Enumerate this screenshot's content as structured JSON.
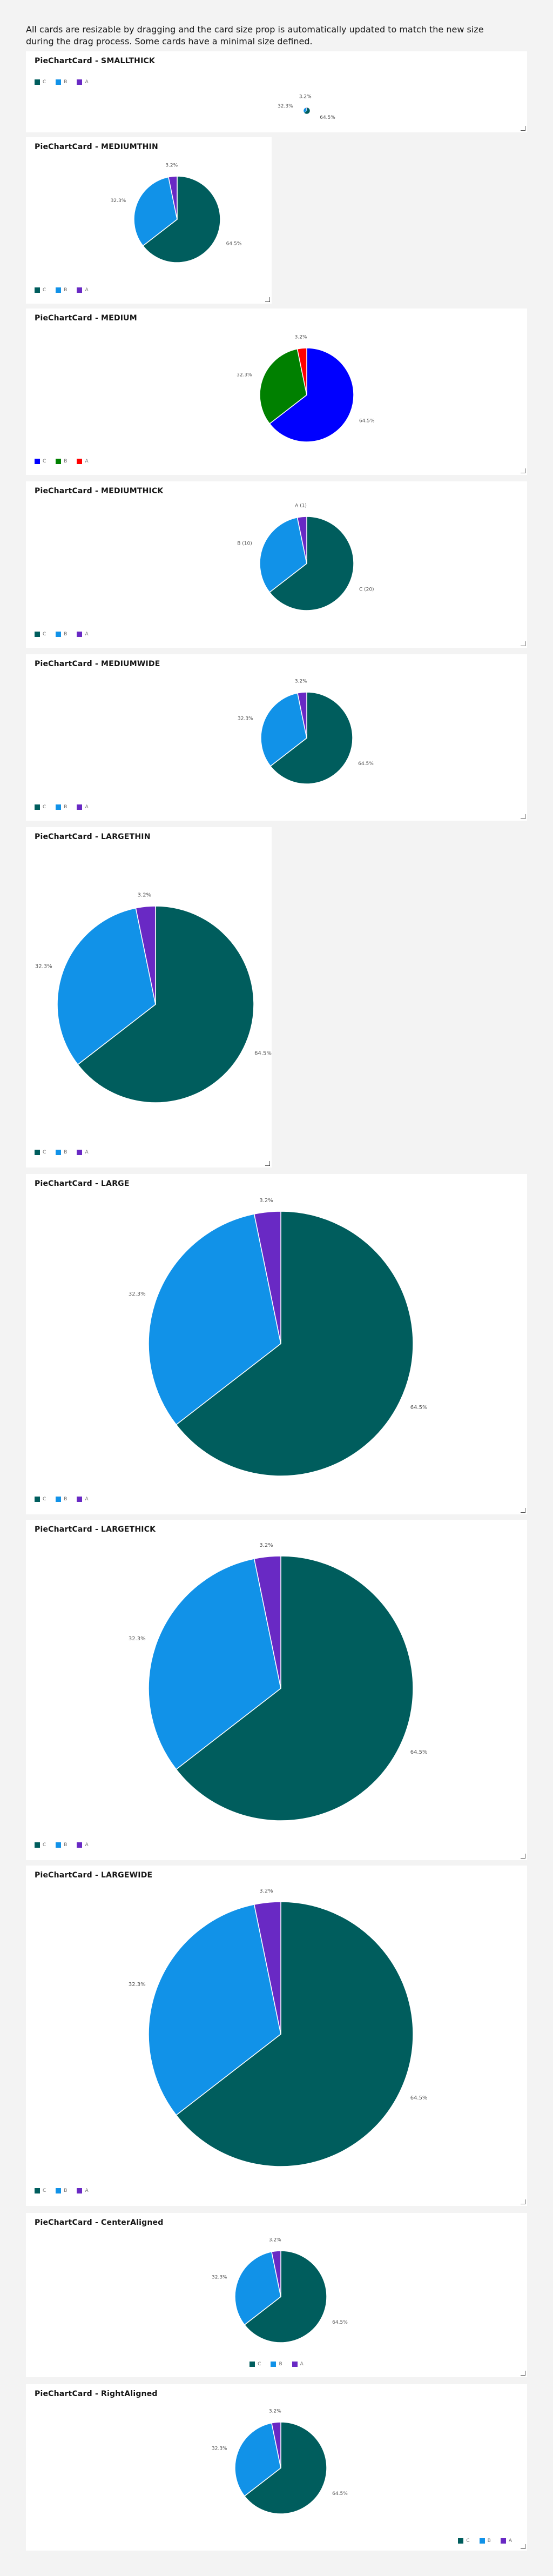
{
  "intro": {
    "text": "All cards are resizable by dragging and the card size prop is automatically updated to match the new size during the drag process. Some cards have a minimal size defined."
  },
  "icons": {
    "resize_handle": "resize-handle-icon"
  },
  "cards": [
    {
      "id": "smallthick",
      "title": "PieChartCard - SMALLTHICK",
      "labels": [
        "64.5%",
        "32.3%",
        "3.2%"
      ],
      "colors": [
        "#005d5d",
        "#1192e8",
        "#6929c4"
      ],
      "legend": [
        "C",
        "B",
        "A"
      ]
    },
    {
      "id": "mediumthin",
      "title": "PieChartCard - MEDIUMTHIN",
      "labels": [
        "64.5%",
        "32.3%",
        "3.2%"
      ],
      "colors": [
        "#005d5d",
        "#1192e8",
        "#6929c4"
      ],
      "legend": [
        "C",
        "B",
        "A"
      ]
    },
    {
      "id": "medium",
      "title": "PieChartCard - MEDIUM",
      "labels": [
        "64.5%",
        "32.3%",
        "3.2%"
      ],
      "colors": [
        "#0000ff",
        "#008000",
        "#ff0000"
      ],
      "legend": [
        "C",
        "B",
        "A"
      ]
    },
    {
      "id": "mediumthick",
      "title": "PieChartCard - MEDIUMTHICK",
      "labels": [
        "C (20)",
        "B (10)",
        "A (1)"
      ],
      "colors": [
        "#005d5d",
        "#1192e8",
        "#6929c4"
      ],
      "legend": [
        "C",
        "B",
        "A"
      ]
    },
    {
      "id": "mediumwide",
      "title": "PieChartCard - MEDIUMWIDE",
      "labels": [
        "64.5%",
        "32.3%",
        "3.2%"
      ],
      "colors": [
        "#005d5d",
        "#1192e8",
        "#6929c4"
      ],
      "legend": [
        "C",
        "B",
        "A"
      ]
    },
    {
      "id": "largethin",
      "title": "PieChartCard - LARGETHIN",
      "labels": [
        "64.5%",
        "32.3%",
        "3.2%"
      ],
      "colors": [
        "#005d5d",
        "#1192e8",
        "#6929c4"
      ],
      "legend": [
        "C",
        "B",
        "A"
      ]
    },
    {
      "id": "large",
      "title": "PieChartCard - LARGE",
      "labels": [
        "64.5%",
        "32.3%",
        "3.2%"
      ],
      "colors": [
        "#005d5d",
        "#1192e8",
        "#6929c4"
      ],
      "legend": [
        "C",
        "B",
        "A"
      ]
    },
    {
      "id": "largethick",
      "title": "PieChartCard - LARGETHICK",
      "labels": [
        "64.5%",
        "32.3%",
        "3.2%"
      ],
      "colors": [
        "#005d5d",
        "#1192e8",
        "#6929c4"
      ],
      "legend": [
        "C",
        "B",
        "A"
      ]
    },
    {
      "id": "largewide",
      "title": "PieChartCard - LARGEWIDE",
      "labels": [
        "64.5%",
        "32.3%",
        "3.2%"
      ],
      "colors": [
        "#005d5d",
        "#1192e8",
        "#6929c4"
      ],
      "legend": [
        "C",
        "B",
        "A"
      ]
    },
    {
      "id": "centeraligned",
      "title": "PieChartCard - CenterAligned",
      "labels": [
        "64.5%",
        "32.3%",
        "3.2%"
      ],
      "colors": [
        "#005d5d",
        "#1192e8",
        "#6929c4"
      ],
      "legend": [
        "C",
        "B",
        "A"
      ]
    },
    {
      "id": "rightaligned",
      "title": "PieChartCard - RightAligned",
      "labels": [
        "64.5%",
        "32.3%",
        "3.2%"
      ],
      "colors": [
        "#005d5d",
        "#1192e8",
        "#6929c4"
      ],
      "legend": [
        "C",
        "B",
        "A"
      ]
    }
  ],
  "chart_data": {
    "type": "pie",
    "categories": [
      "C",
      "B",
      "A"
    ],
    "values": [
      20,
      10,
      1
    ],
    "percentages": [
      64.5,
      32.3,
      3.2
    ]
  }
}
